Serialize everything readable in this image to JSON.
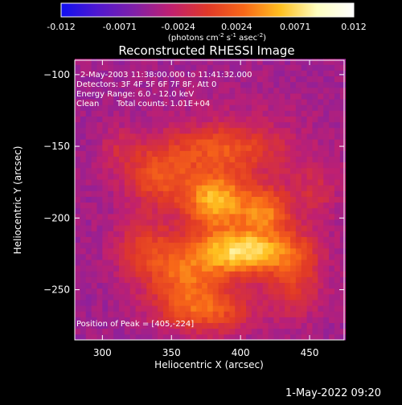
{
  "colorbar": {
    "ticks": [
      "-0.012",
      "-0.0071",
      "-0.0024",
      "0.0024",
      "0.0071",
      "0.012"
    ],
    "units_pre": "(photons cm",
    "units_e1": "-2",
    "units_mid": " s",
    "units_e2": "-1",
    "units_post": " asec",
    "units_e3": "-2",
    "units_close": ")",
    "colors": [
      "#1010f0",
      "#5018d0",
      "#8020a8",
      "#c02070",
      "#e03828",
      "#f86818",
      "#ffc020",
      "#ffffc0",
      "#ffffff"
    ]
  },
  "title": "Reconstructed RHESSI Image",
  "info": {
    "line1": "2-May-2003 11:38:00.000 to 11:41:32.000",
    "line2": "Detectors: 3F 4F 5F 6F 7F 8F, Att 0",
    "line3": "Energy Range: 6.0 - 12.0 keV",
    "line4_a": "Clean",
    "line4_b": "Total counts: 1.01E+04"
  },
  "peak_label": "Position of Peak = [405,-224]",
  "chart_data": {
    "type": "heatmap",
    "title": "Reconstructed RHESSI Image",
    "xlabel": "Heliocentric X (arcsec)",
    "ylabel": "Heliocentric Y (arcsec)",
    "xlim": [
      280,
      475
    ],
    "ylim": [
      -285,
      -90
    ],
    "xticks": [
      "300",
      "350",
      "400",
      "450"
    ],
    "yticks": [
      "-100",
      "-150",
      "-200",
      "-250"
    ],
    "xtick_values": [
      300,
      350,
      400,
      450
    ],
    "ytick_values": [
      -100,
      -150,
      -200,
      -250
    ],
    "colorbar_range": [
      -0.012,
      0.012
    ],
    "peak": [
      405,
      -224
    ],
    "sources": [
      {
        "x": 403,
        "y": -223,
        "sx": 24,
        "sy": 11,
        "amp": 0.0105
      },
      {
        "x": 382,
        "y": -188,
        "sx": 15,
        "sy": 13,
        "amp": 0.0078
      },
      {
        "x": 418,
        "y": -195,
        "sx": 12,
        "sy": 10,
        "amp": 0.0058
      },
      {
        "x": 360,
        "y": -240,
        "sx": 22,
        "sy": 15,
        "amp": 0.0062
      },
      {
        "x": 340,
        "y": -170,
        "sx": 18,
        "sy": 14,
        "amp": 0.0052
      },
      {
        "x": 375,
        "y": -265,
        "sx": 24,
        "sy": 11,
        "amp": 0.006
      },
      {
        "x": 440,
        "y": -240,
        "sx": 14,
        "sy": 20,
        "amp": 0.0044
      },
      {
        "x": 330,
        "y": -220,
        "sx": 15,
        "sy": 14,
        "amp": 0.004
      },
      {
        "x": 385,
        "y": -150,
        "sx": 28,
        "sy": 10,
        "amp": 0.004
      },
      {
        "x": 312,
        "y": -150,
        "sx": 10,
        "sy": 10,
        "amp": 0.0022
      },
      {
        "x": 455,
        "y": -180,
        "sx": 10,
        "sy": 12,
        "amp": 0.0022
      },
      {
        "x": 395,
        "y": -175,
        "sx": 40,
        "sy": 35,
        "amp": 0.003
      }
    ],
    "background": -0.0045
  },
  "footer": "1-May-2022 09:20"
}
